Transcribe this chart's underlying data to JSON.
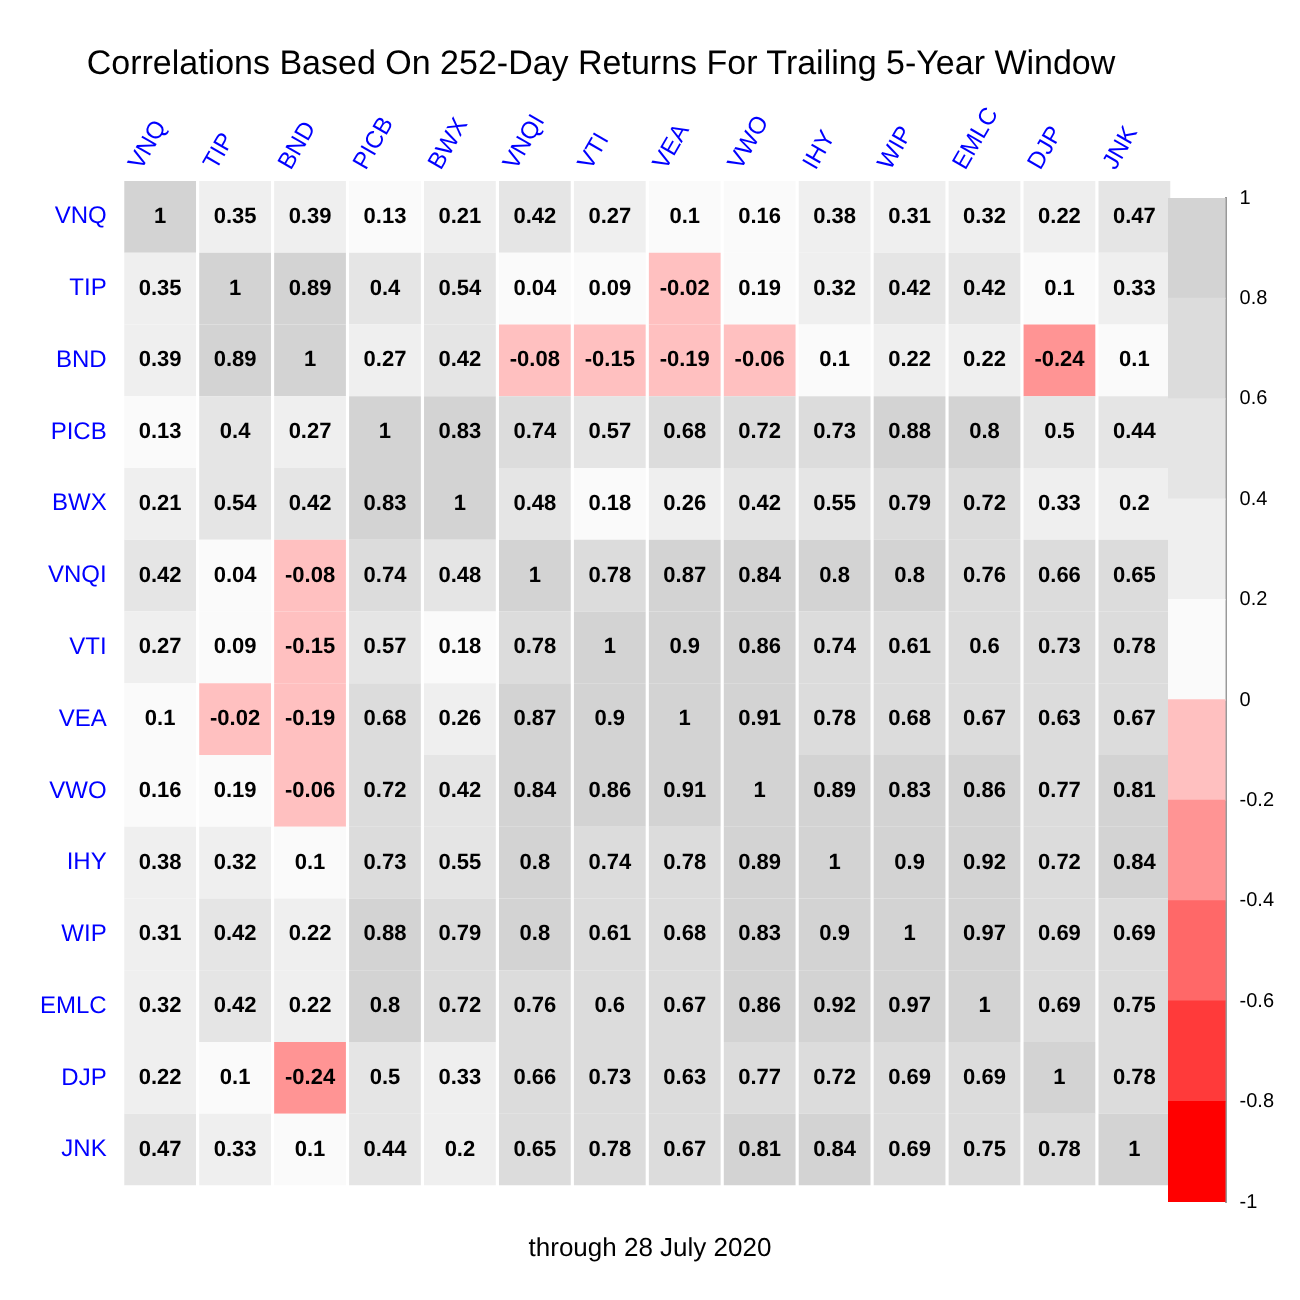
{
  "chart_data": {
    "type": "heatmap",
    "title": "Correlations Based On 252-Day Returns For Trailing 5-Year Window",
    "categories": [
      "VNQ",
      "TIP",
      "BND",
      "PICB",
      "BWX",
      "VNQI",
      "VTI",
      "VEA",
      "VWO",
      "IHY",
      "WIP",
      "EMLC",
      "DJP",
      "JNK"
    ],
    "y_categories": [
      "VNQ",
      "TIP",
      "BND",
      "PICB",
      "BWX",
      "VNQI",
      "VTI",
      "VEA",
      "VWO",
      "IHY",
      "WIP",
      "EMLC",
      "DJP",
      "JNK"
    ],
    "cells": [
      [
        1,
        0.35,
        0.39,
        0.13,
        0.21,
        0.42,
        0.27,
        0.1,
        0.16,
        0.38,
        0.31,
        0.32,
        0.22,
        0.47
      ],
      [
        0.35,
        1,
        0.89,
        0.4,
        0.54,
        0.04,
        0.09,
        -0.02,
        0.19,
        0.32,
        0.42,
        0.42,
        0.1,
        0.33
      ],
      [
        0.39,
        0.89,
        1,
        0.27,
        0.42,
        -0.08,
        -0.15,
        -0.19,
        -0.06,
        0.1,
        0.22,
        0.22,
        -0.24,
        0.1
      ],
      [
        0.13,
        0.4,
        0.27,
        1,
        0.83,
        0.74,
        0.57,
        0.68,
        0.72,
        0.73,
        0.88,
        0.8,
        0.5,
        0.44
      ],
      [
        0.21,
        0.54,
        0.42,
        0.83,
        1,
        0.48,
        0.18,
        0.26,
        0.42,
        0.55,
        0.79,
        0.72,
        0.33,
        0.2
      ],
      [
        0.42,
        0.04,
        -0.08,
        0.74,
        0.48,
        1,
        0.78,
        0.87,
        0.84,
        0.8,
        0.8,
        0.76,
        0.66,
        0.65
      ],
      [
        0.27,
        0.09,
        -0.15,
        0.57,
        0.18,
        0.78,
        1,
        0.9,
        0.86,
        0.74,
        0.61,
        0.6,
        0.73,
        0.78
      ],
      [
        0.1,
        -0.02,
        -0.19,
        0.68,
        0.26,
        0.87,
        0.9,
        1,
        0.91,
        0.78,
        0.68,
        0.67,
        0.63,
        0.67
      ],
      [
        0.16,
        0.19,
        -0.06,
        0.72,
        0.42,
        0.84,
        0.86,
        0.91,
        1,
        0.89,
        0.83,
        0.86,
        0.77,
        0.81
      ],
      [
        0.38,
        0.32,
        0.1,
        0.73,
        0.55,
        0.8,
        0.74,
        0.78,
        0.89,
        1,
        0.9,
        0.92,
        0.72,
        0.84
      ],
      [
        0.31,
        0.42,
        0.22,
        0.88,
        0.79,
        0.8,
        0.61,
        0.68,
        0.83,
        0.9,
        1,
        0.97,
        0.69,
        0.69
      ],
      [
        0.32,
        0.42,
        0.22,
        0.8,
        0.72,
        0.76,
        0.6,
        0.67,
        0.86,
        0.92,
        0.97,
        1,
        0.69,
        0.75
      ],
      [
        0.22,
        0.1,
        -0.24,
        0.5,
        0.33,
        0.66,
        0.73,
        0.63,
        0.77,
        0.72,
        0.69,
        0.69,
        1,
        0.78
      ],
      [
        0.47,
        0.33,
        0.1,
        0.44,
        0.2,
        0.65,
        0.78,
        0.67,
        0.81,
        0.84,
        0.69,
        0.75,
        0.78,
        1
      ]
    ],
    "clim": [
      -1,
      1
    ],
    "cticks": [
      -1,
      -0.8,
      -0.6,
      -0.4,
      -0.2,
      0,
      0.2,
      0.4,
      0.6,
      0.8,
      1
    ],
    "data_labels": true,
    "annotations": [
      "through 28 July 2020"
    ]
  }
}
